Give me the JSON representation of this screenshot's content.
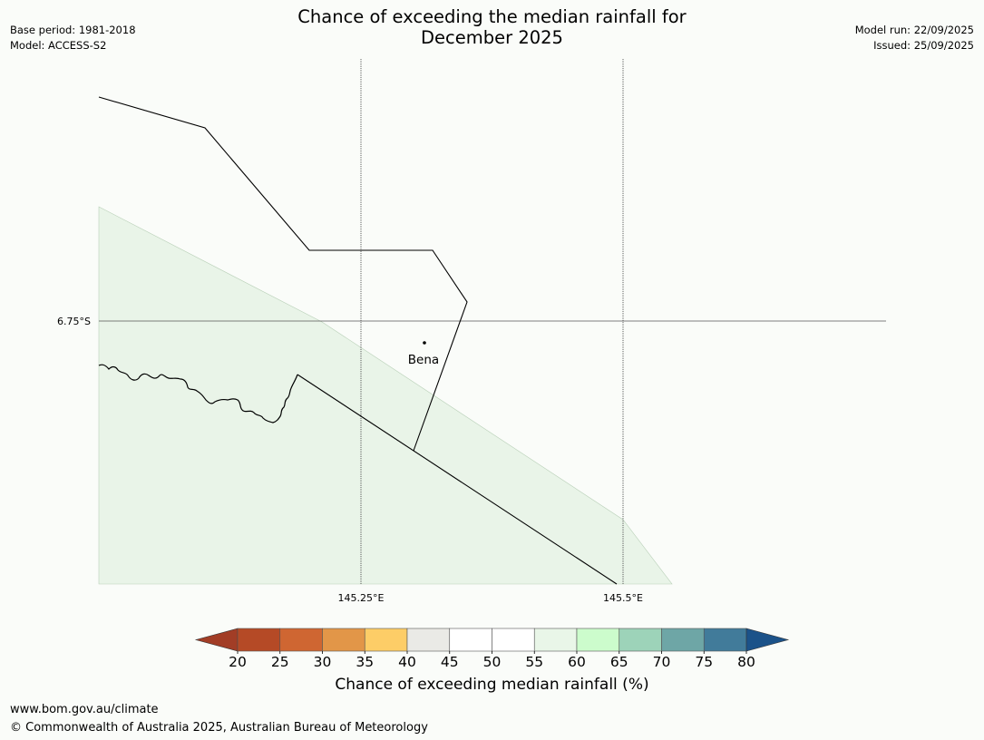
{
  "header": {
    "title_line1": "Chance of exceeding the median rainfall for",
    "title_line2": "December 2025",
    "base_period": "Base period: 1981-2018",
    "model": "Model: ACCESS-S2",
    "model_run": "Model run: 22/09/2025",
    "issued": "Issued: 25/09/2025"
  },
  "map": {
    "lat_label": "6.75°S",
    "lon_labels": [
      "145.25°E",
      "145.5°E"
    ],
    "place_name": "Bena",
    "shaded_class_percent_range": [
      55,
      60
    ]
  },
  "colorbar": {
    "title": "Chance of exceeding median rainfall (%)",
    "ticks": [
      "20",
      "25",
      "30",
      "35",
      "40",
      "45",
      "50",
      "55",
      "60",
      "65",
      "70",
      "75",
      "80"
    ],
    "colors": [
      "#a23d26",
      "#b54a26",
      "#cf6632",
      "#e29648",
      "#fdcd67",
      "#eaeae6",
      "#ffffff",
      "#ffffff",
      "#e9f6e8",
      "#ccfccc",
      "#9dd3b9",
      "#6ea6a6",
      "#417b9a",
      "#1b5289"
    ]
  },
  "footer": {
    "url": "www.bom.gov.au/climate",
    "copyright": "© Commonwealth of Australia 2025, Australian Bureau of Meteorology"
  }
}
